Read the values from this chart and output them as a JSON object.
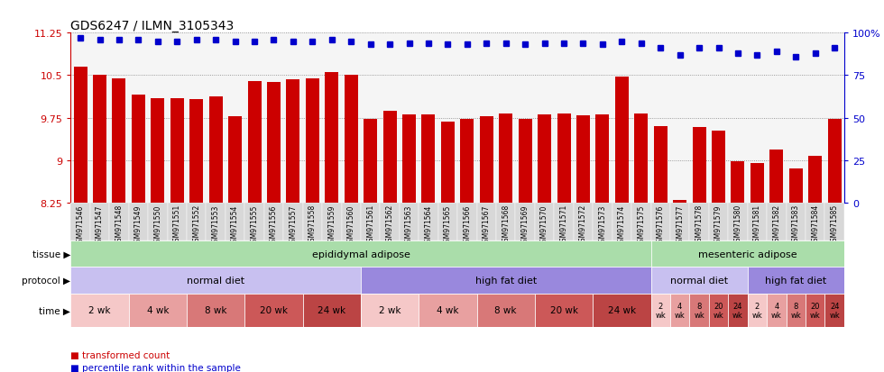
{
  "title": "GDS6247 / ILMN_3105343",
  "samples": [
    "GSM971546",
    "GSM971547",
    "GSM971548",
    "GSM971549",
    "GSM971550",
    "GSM971551",
    "GSM971552",
    "GSM971553",
    "GSM971554",
    "GSM971555",
    "GSM971556",
    "GSM971557",
    "GSM971558",
    "GSM971559",
    "GSM971560",
    "GSM971561",
    "GSM971562",
    "GSM971563",
    "GSM971564",
    "GSM971565",
    "GSM971566",
    "GSM971567",
    "GSM971568",
    "GSM971569",
    "GSM971570",
    "GSM971571",
    "GSM971572",
    "GSM971573",
    "GSM971574",
    "GSM971575",
    "GSM971576",
    "GSM971577",
    "GSM971578",
    "GSM971579",
    "GSM971580",
    "GSM971581",
    "GSM971582",
    "GSM971583",
    "GSM971584",
    "GSM971585"
  ],
  "bar_values": [
    10.65,
    10.5,
    10.45,
    10.15,
    10.1,
    10.1,
    10.08,
    10.12,
    9.78,
    10.4,
    10.38,
    10.42,
    10.45,
    10.55,
    10.5,
    9.72,
    9.87,
    9.8,
    9.8,
    9.68,
    9.73,
    9.77,
    9.82,
    9.73,
    9.8,
    9.83,
    9.79,
    9.81,
    10.47,
    9.83,
    9.6,
    8.3,
    9.58,
    9.52,
    8.98,
    8.95,
    9.18,
    8.85,
    9.08,
    9.72
  ],
  "percentile_values": [
    97,
    96,
    96,
    96,
    95,
    95,
    96,
    96,
    95,
    95,
    96,
    95,
    95,
    96,
    95,
    93,
    93,
    94,
    94,
    93,
    93,
    94,
    94,
    93,
    94,
    94,
    94,
    93,
    95,
    94,
    91,
    87,
    91,
    91,
    88,
    87,
    89,
    86,
    88,
    91
  ],
  "ylim": [
    8.25,
    11.25
  ],
  "yticks": [
    8.25,
    9.0,
    9.75,
    10.5,
    11.25
  ],
  "yticklabels": [
    "8.25",
    "9",
    "9.75",
    "10.5",
    "11.25"
  ],
  "bar_color": "#cc0000",
  "dot_color": "#0000cc",
  "bg_color": "#ffffff",
  "tissue_color": "#aaddaa",
  "proto_light_color": "#c8c0f0",
  "proto_dark_color": "#9988dd",
  "right_ylim": [
    0,
    100
  ],
  "right_yticks": [
    0,
    25,
    50,
    75,
    100
  ],
  "right_yticklabels": [
    "0",
    "25",
    "50",
    "75",
    "100%"
  ],
  "time_blocks": [
    {
      "label": "2 wk",
      "start": 0,
      "end": 2,
      "color": "#f5c8c8"
    },
    {
      "label": "4 wk",
      "start": 3,
      "end": 5,
      "color": "#e8a0a0"
    },
    {
      "label": "8 wk",
      "start": 6,
      "end": 8,
      "color": "#d87878"
    },
    {
      "label": "20 wk",
      "start": 9,
      "end": 11,
      "color": "#cc5858"
    },
    {
      "label": "24 wk",
      "start": 12,
      "end": 14,
      "color": "#bb4444"
    },
    {
      "label": "2 wk",
      "start": 15,
      "end": 17,
      "color": "#f5c8c8"
    },
    {
      "label": "4 wk",
      "start": 18,
      "end": 20,
      "color": "#e8a0a0"
    },
    {
      "label": "8 wk",
      "start": 21,
      "end": 23,
      "color": "#d87878"
    },
    {
      "label": "20 wk",
      "start": 24,
      "end": 26,
      "color": "#cc5858"
    },
    {
      "label": "24 wk",
      "start": 27,
      "end": 29,
      "color": "#bb4444"
    },
    {
      "label": "2\nwk",
      "start": 30,
      "end": 30,
      "color": "#f5c8c8"
    },
    {
      "label": "4\nwk",
      "start": 31,
      "end": 31,
      "color": "#e8a0a0"
    },
    {
      "label": "8\nwk",
      "start": 32,
      "end": 32,
      "color": "#d87878"
    },
    {
      "label": "20\nwk",
      "start": 33,
      "end": 33,
      "color": "#cc5858"
    },
    {
      "label": "24\nwk",
      "start": 34,
      "end": 34,
      "color": "#bb4444"
    },
    {
      "label": "2\nwk",
      "start": 35,
      "end": 35,
      "color": "#f5c8c8"
    },
    {
      "label": "4\nwk",
      "start": 36,
      "end": 36,
      "color": "#e8a0a0"
    },
    {
      "label": "8\nwk",
      "start": 37,
      "end": 37,
      "color": "#d87878"
    },
    {
      "label": "20\nwk",
      "start": 38,
      "end": 38,
      "color": "#cc5858"
    },
    {
      "label": "24\nwk",
      "start": 39,
      "end": 39,
      "color": "#bb4444"
    }
  ]
}
